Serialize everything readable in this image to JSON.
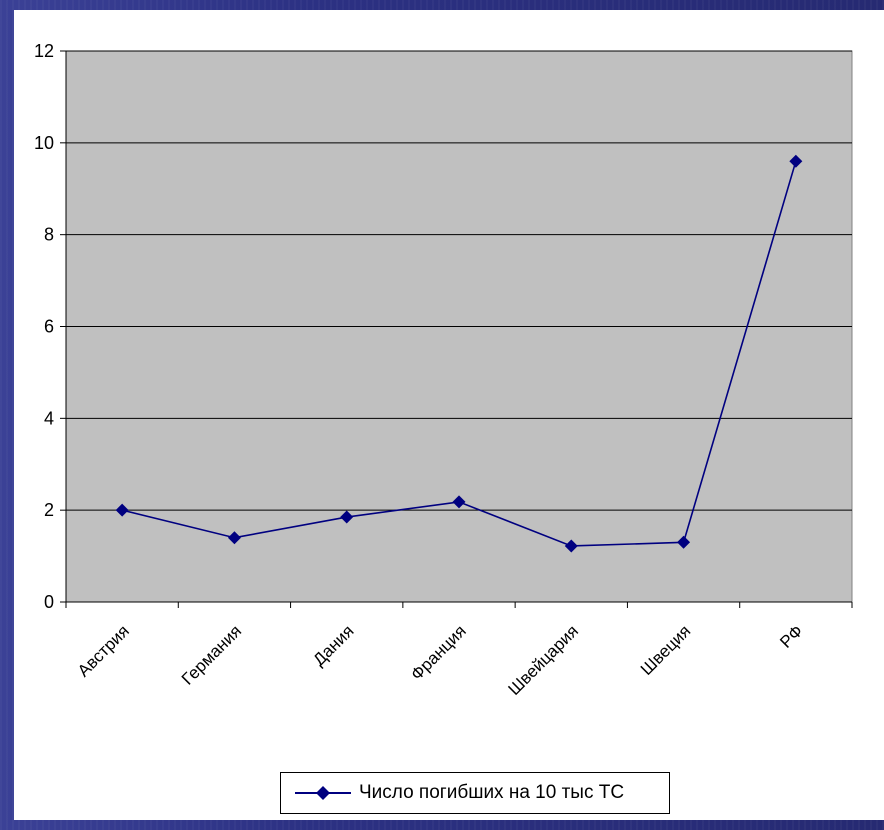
{
  "colors": {
    "plot_area": "#c0c0c0",
    "series_line": "#000080",
    "gridline": "#000000",
    "slide_background": "#2c3183"
  },
  "chart_data": {
    "type": "line",
    "categories": [
      "Австрия",
      "Германия",
      "Дания",
      "Франция",
      "Швейцария",
      "Швеция",
      "РФ"
    ],
    "series": [
      {
        "name": "Число погибших на 10 тыс ТС",
        "values": [
          2.0,
          1.4,
          1.85,
          2.18,
          1.22,
          1.3,
          9.6
        ],
        "marker": "diamond"
      }
    ],
    "ylim": [
      0,
      12
    ],
    "yticks": [
      0,
      2,
      4,
      6,
      8,
      10,
      12
    ],
    "grid": true,
    "legend": "bottom",
    "title": "",
    "xlabel": "",
    "ylabel": ""
  }
}
